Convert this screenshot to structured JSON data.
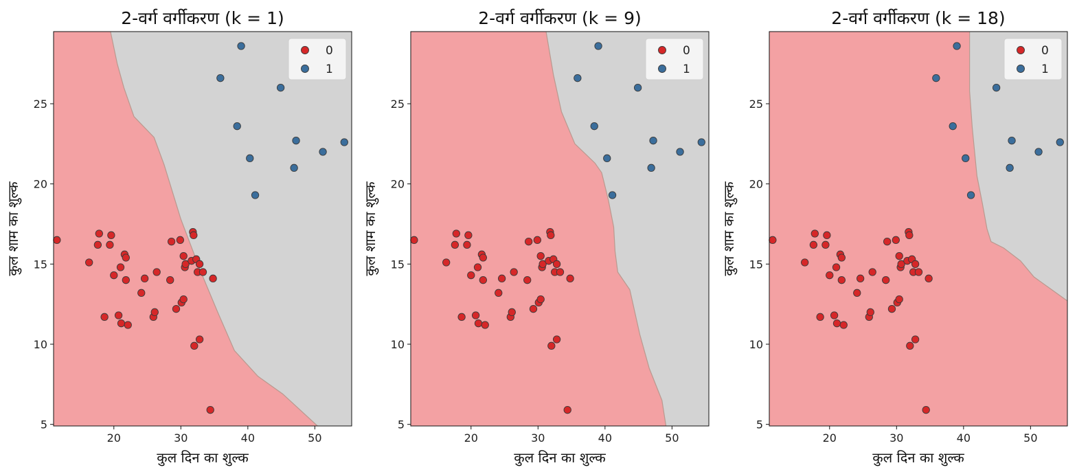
{
  "chart_data": [
    {
      "type": "scatter",
      "title": "2-वर्ग वर्गीकरण (k = 1)",
      "k": 1,
      "xlabel": "कुल दिन का शुल्क",
      "ylabel": "कुल शाम का शुल्क",
      "xlim": [
        11,
        55.5
      ],
      "ylim": [
        4.9,
        29.5
      ],
      "xticks": [
        20,
        30,
        40,
        50
      ],
      "yticks": [
        5,
        10,
        15,
        20,
        25
      ],
      "legend": "top-right",
      "boundary": [
        [
          19.5,
          29.5
        ],
        [
          20.5,
          27.5
        ],
        [
          21.5,
          26
        ],
        [
          23,
          24.2
        ],
        [
          26,
          22.9
        ],
        [
          27.5,
          21.2
        ],
        [
          30,
          17.8
        ],
        [
          33,
          14.5
        ],
        [
          35.5,
          12
        ],
        [
          38,
          9.6
        ],
        [
          41.5,
          8.0
        ],
        [
          45.2,
          6.9
        ],
        [
          50.4,
          4.9
        ]
      ]
    },
    {
      "type": "scatter",
      "title": "2-वर्ग वर्गीकरण (k = 9)",
      "k": 9,
      "xlabel": "कुल दिन का शुल्क",
      "ylabel": "कुल शाम का शुल्क",
      "xlim": [
        11,
        55.5
      ],
      "ylim": [
        4.9,
        29.5
      ],
      "xticks": [
        20,
        30,
        40,
        50
      ],
      "yticks": [
        5,
        10,
        15,
        20,
        25
      ],
      "legend": "top-right",
      "boundary": [
        [
          31.2,
          29.5
        ],
        [
          32.3,
          26.8
        ],
        [
          33.5,
          24.5
        ],
        [
          35.5,
          22.5
        ],
        [
          38.5,
          21.3
        ],
        [
          39.5,
          20.7
        ],
        [
          40.5,
          19.0
        ],
        [
          41.3,
          17.3
        ],
        [
          41.5,
          15.8
        ],
        [
          41.9,
          14.5
        ],
        [
          43.7,
          13.4
        ],
        [
          45.2,
          10.6
        ],
        [
          46.6,
          8.5
        ],
        [
          48.5,
          6.5
        ],
        [
          49.1,
          4.9
        ]
      ]
    },
    {
      "type": "scatter",
      "title": "2-वर्ग वर्गीकरण (k = 18)",
      "k": 18,
      "xlabel": "कुल दिन का शुल्क",
      "ylabel": "कुल शाम का शुल्क",
      "xlim": [
        11,
        55.5
      ],
      "ylim": [
        4.9,
        29.5
      ],
      "xticks": [
        20,
        30,
        40,
        50
      ],
      "yticks": [
        5,
        10,
        15,
        20,
        25
      ],
      "legend": "top-right",
      "boundary": [
        [
          40.9,
          29.5
        ],
        [
          40.9,
          25.8
        ],
        [
          41.3,
          23.5
        ],
        [
          42.0,
          20.5
        ],
        [
          42.8,
          18.8
        ],
        [
          43.5,
          17.2
        ],
        [
          44.1,
          16.4
        ],
        [
          46.0,
          16.0
        ],
        [
          48.5,
          15.2
        ],
        [
          50.5,
          14.2
        ],
        [
          52.5,
          13.6
        ],
        [
          55.5,
          12.7
        ]
      ]
    }
  ],
  "points": {
    "class0": [
      [
        11.5,
        16.5
      ],
      [
        16.3,
        15.1
      ],
      [
        17.6,
        16.2
      ],
      [
        17.8,
        16.9
      ],
      [
        18.6,
        11.7
      ],
      [
        19.4,
        16.2
      ],
      [
        19.6,
        16.8
      ],
      [
        20.0,
        14.3
      ],
      [
        20.7,
        11.8
      ],
      [
        21.0,
        14.8
      ],
      [
        21.1,
        11.3
      ],
      [
        21.6,
        15.6
      ],
      [
        21.8,
        14.0
      ],
      [
        21.8,
        15.4
      ],
      [
        22.1,
        11.2
      ],
      [
        24.1,
        13.2
      ],
      [
        24.6,
        14.1
      ],
      [
        25.9,
        11.7
      ],
      [
        26.1,
        12.0
      ],
      [
        26.4,
        14.5
      ],
      [
        28.4,
        14.0
      ],
      [
        28.6,
        16.4
      ],
      [
        29.3,
        12.2
      ],
      [
        29.9,
        16.5
      ],
      [
        30.1,
        12.6
      ],
      [
        30.4,
        15.5
      ],
      [
        30.4,
        12.8
      ],
      [
        30.6,
        14.8
      ],
      [
        30.7,
        15.0
      ],
      [
        31.6,
        15.2
      ],
      [
        31.8,
        17.0
      ],
      [
        31.9,
        16.8
      ],
      [
        32.0,
        9.9
      ],
      [
        32.3,
        15.3
      ],
      [
        32.5,
        14.5
      ],
      [
        32.8,
        15.0
      ],
      [
        32.8,
        10.3
      ],
      [
        33.3,
        14.5
      ],
      [
        34.4,
        5.9
      ],
      [
        34.8,
        14.1
      ]
    ],
    "class1": [
      [
        35.9,
        26.6
      ],
      [
        38.4,
        23.6
      ],
      [
        39.0,
        28.6
      ],
      [
        40.3,
        21.6
      ],
      [
        41.1,
        19.3
      ],
      [
        44.9,
        26.0
      ],
      [
        46.9,
        21.0
      ],
      [
        47.2,
        22.7
      ],
      [
        51.2,
        22.0
      ],
      [
        54.4,
        22.6
      ]
    ]
  },
  "legend_entries": [
    "0",
    "1"
  ],
  "colors": {
    "class0_point": "#d62728",
    "class1_point": "#3b6e9c",
    "region0": "#f3a1a3",
    "region1": "#d3d3d3",
    "edge": "#3a3a3a"
  }
}
